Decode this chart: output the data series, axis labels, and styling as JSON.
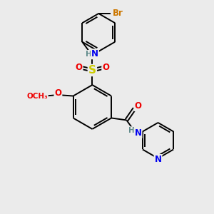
{
  "bg_color": "#ebebeb",
  "atom_colors": {
    "C": "#000000",
    "H": "#5f8a8a",
    "N": "#0000ee",
    "O": "#ee0000",
    "S": "#cccc00",
    "Br": "#cc7700"
  },
  "bond_color": "#000000",
  "bond_width": 1.4,
  "dbo": 0.055,
  "fs": 8.5,
  "fs_br": 8.5
}
